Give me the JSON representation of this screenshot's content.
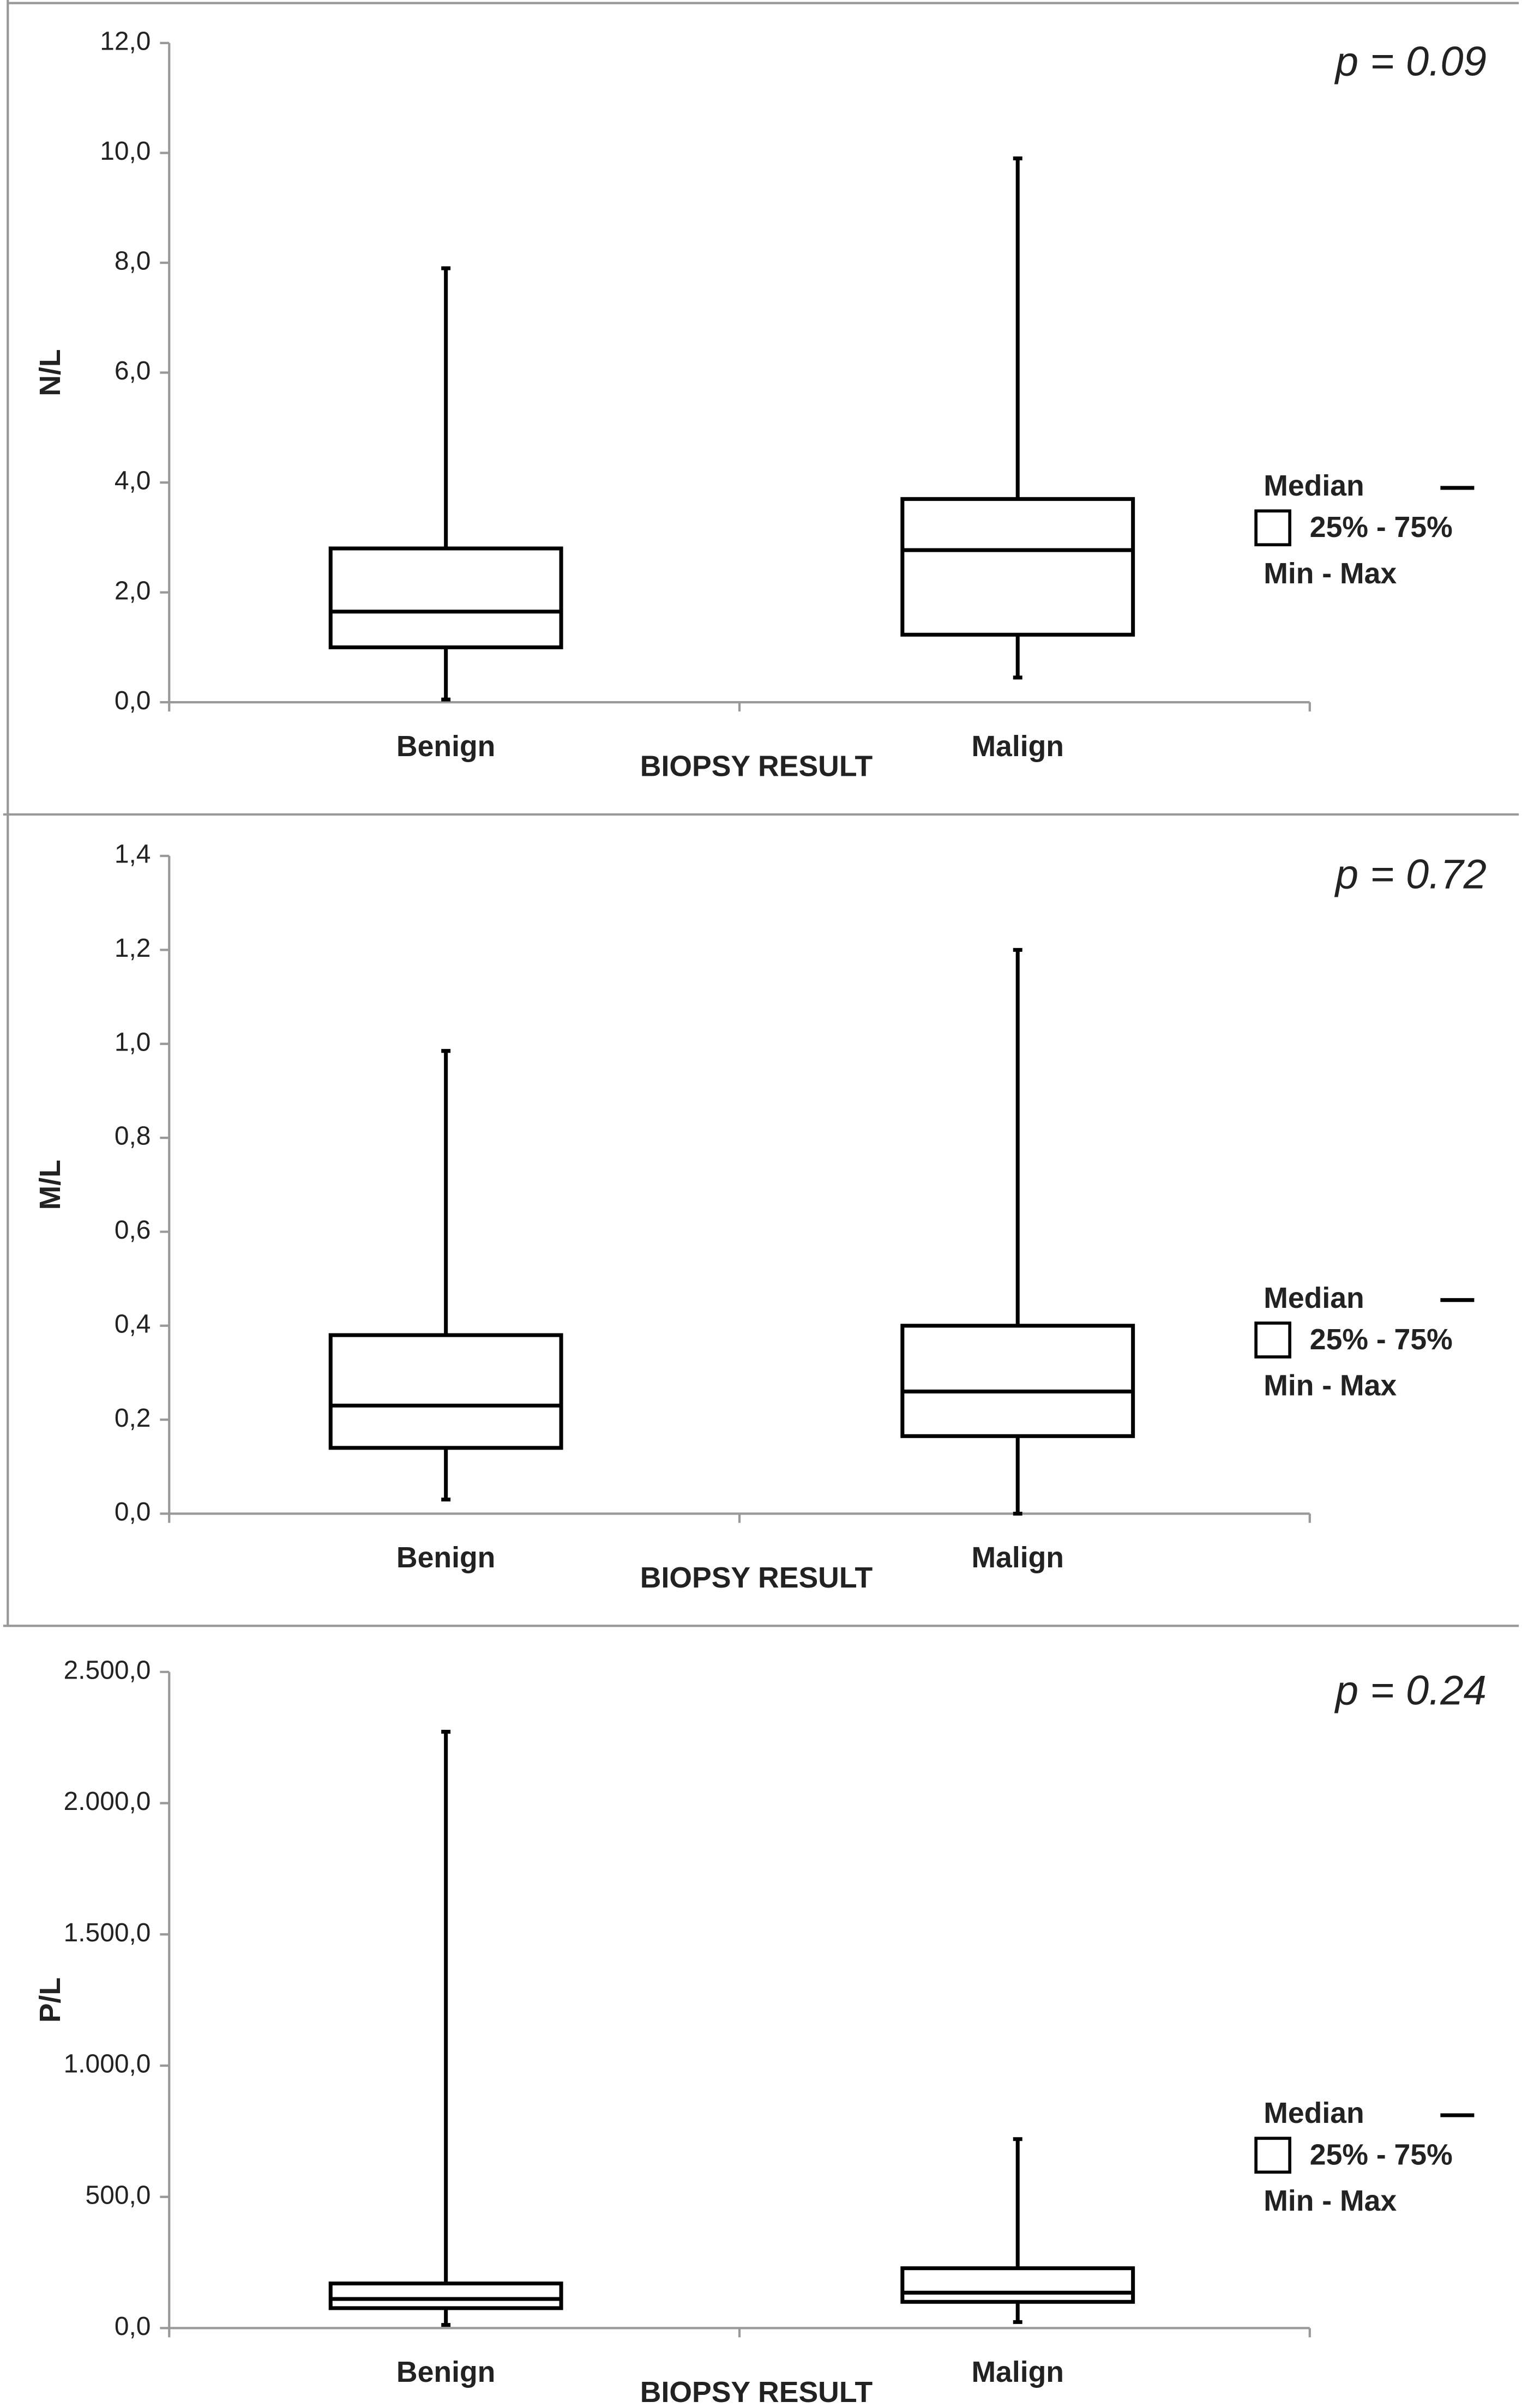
{
  "chart_data": [
    {
      "type": "box",
      "ylabel": "N/L",
      "xlabel": "BIOPSY RESULT",
      "annotation": "p = 0.09",
      "categories": [
        "Benign",
        "Malign"
      ],
      "boxes": [
        {
          "min": 0.05,
          "q1": 1.0,
          "median": 1.65,
          "q3": 2.8,
          "max": 7.9
        },
        {
          "min": 0.45,
          "q1": 1.23,
          "median": 2.77,
          "q3": 3.7,
          "max": 9.9
        }
      ],
      "ylim": [
        0,
        12
      ],
      "yticks": [
        {
          "value": 0,
          "label": "0,0"
        },
        {
          "value": 2,
          "label": "2,0"
        },
        {
          "value": 4,
          "label": "4,0"
        },
        {
          "value": 6,
          "label": "6,0"
        },
        {
          "value": 8,
          "label": "8,0"
        },
        {
          "value": 10,
          "label": "10,0"
        },
        {
          "value": 12,
          "label": "12,0"
        }
      ],
      "legend": [
        "Median",
        "25% - 75%",
        "Min - Max"
      ],
      "color": "#000000"
    },
    {
      "type": "box",
      "ylabel": "M/L",
      "xlabel": "BIOPSY RESULT",
      "annotation": "p = 0.72",
      "categories": [
        "Benign",
        "Malign"
      ],
      "boxes": [
        {
          "min": 0.03,
          "q1": 0.14,
          "median": 0.23,
          "q3": 0.38,
          "max": 0.985
        },
        {
          "min": 0.0,
          "q1": 0.165,
          "median": 0.26,
          "q3": 0.4,
          "max": 1.2
        }
      ],
      "ylim": [
        0,
        1.4
      ],
      "yticks": [
        {
          "value": 0,
          "label": "0,0"
        },
        {
          "value": 0.2,
          "label": "0,2"
        },
        {
          "value": 0.4,
          "label": "0,4"
        },
        {
          "value": 0.6,
          "label": "0,6"
        },
        {
          "value": 0.8,
          "label": "0,8"
        },
        {
          "value": 1.0,
          "label": "1,0"
        },
        {
          "value": 1.2,
          "label": "1,2"
        },
        {
          "value": 1.4,
          "label": "1,4"
        }
      ],
      "legend": [
        "Median",
        "25% - 75%",
        "Min - Max"
      ],
      "color": "#000000"
    },
    {
      "type": "box",
      "ylabel": "P/L",
      "xlabel": "BIOPSY RESULT",
      "annotation": "p = 0.24",
      "categories": [
        "Benign",
        "Malign"
      ],
      "boxes": [
        {
          "min": 12,
          "q1": 76,
          "median": 111,
          "q3": 170,
          "max": 2272
        },
        {
          "min": 23,
          "q1": 100,
          "median": 135,
          "q3": 228,
          "max": 720
        }
      ],
      "ylim": [
        0,
        2500
      ],
      "yticks": [
        {
          "value": 0,
          "label": "0,0"
        },
        {
          "value": 500,
          "label": "500,0"
        },
        {
          "value": 1000,
          "label": "1.000,0"
        },
        {
          "value": 1500,
          "label": "1.500,0"
        },
        {
          "value": 2000,
          "label": "2.000,0"
        },
        {
          "value": 2500,
          "label": "2.500,0"
        }
      ],
      "legend": [
        "Median",
        "25% - 75%",
        "Min - Max"
      ],
      "color": "#000000"
    }
  ]
}
